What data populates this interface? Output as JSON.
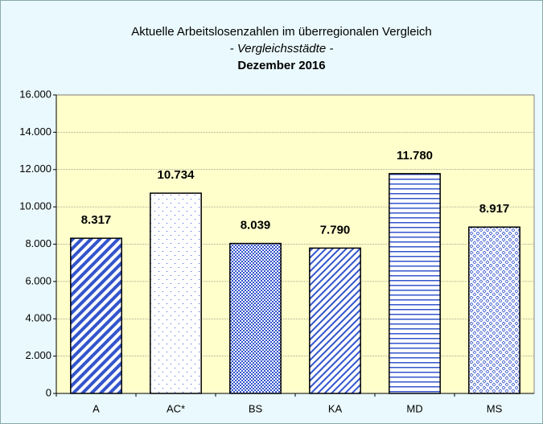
{
  "chart_data": {
    "type": "bar",
    "title": "Aktuelle Arbeitslosenzahlen im überregionalen Vergleich",
    "subtitle": "- Vergleichsstädte -",
    "period": "Dezember 2016",
    "categories": [
      "A",
      "AC*",
      "BS",
      "KA",
      "MD",
      "MS"
    ],
    "values": [
      8317,
      10734,
      8039,
      7790,
      11780,
      8917
    ],
    "value_labels": [
      "8.317",
      "10.734",
      "8.039",
      "7.790",
      "11.780",
      "8.917"
    ],
    "color": "#3355cc",
    "ylim": [
      0,
      16000
    ],
    "yticks": [
      0,
      {
        "value": 2000,
        "label": "2.000"
      },
      {
        "value": 4000,
        "label": "4.000"
      },
      {
        "value": 6000,
        "label": "6.000"
      },
      {
        "value": 8000,
        "label": "8.000"
      },
      {
        "value": 10000,
        "label": "10.000"
      },
      {
        "value": 12000,
        "label": "12.000"
      },
      {
        "value": 14000,
        "label": "14.000"
      },
      {
        "value": 16000,
        "label": "16.000"
      }
    ],
    "grid": true
  }
}
